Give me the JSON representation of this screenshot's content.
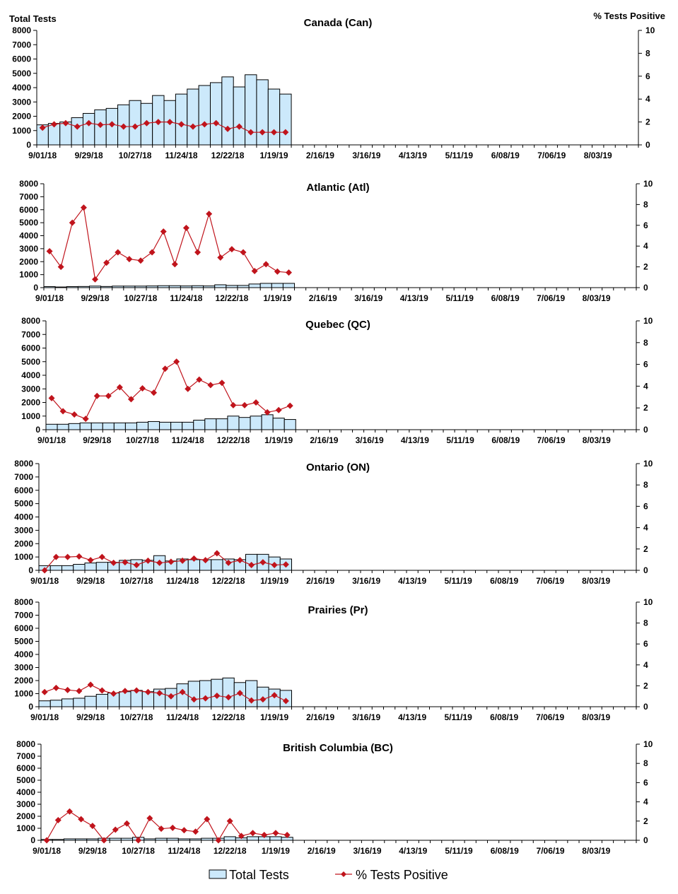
{
  "axis_labels": {
    "left": "Total Tests",
    "right": "% Tests Positive"
  },
  "legend": {
    "bars": "Total Tests",
    "line": "% Tests Positive"
  },
  "colors": {
    "bar_fill": "#cce9fb",
    "bar_stroke": "#000000",
    "line": "#c0141c"
  },
  "x_tick_labels": [
    "9/01/18",
    "9/29/18",
    "10/27/18",
    "11/24/18",
    "12/22/18",
    "1/19/19",
    "2/16/19",
    "3/16/19",
    "4/13/19",
    "5/11/19",
    "6/08/19",
    "7/06/19",
    "8/03/19"
  ],
  "chart_data": [
    {
      "type": "bar+line",
      "title": "Canada (Can)",
      "x_weeks_start": "9/01/18",
      "ylim_left": [
        0,
        8000
      ],
      "ylim_right": [
        0,
        10
      ],
      "left_ticks": [
        0,
        1000,
        2000,
        3000,
        4000,
        5000,
        6000,
        7000,
        8000
      ],
      "right_ticks": [
        0,
        2,
        4,
        6,
        8,
        10
      ],
      "series": [
        {
          "name": "Total Tests",
          "axis": "left",
          "values": [
            1400,
            1500,
            1600,
            1900,
            2200,
            2450,
            2550,
            2800,
            3100,
            2900,
            3450,
            3100,
            3550,
            3900,
            4150,
            4350,
            4750,
            4050,
            4900,
            4550,
            3900,
            3550
          ]
        },
        {
          "name": "% Tests Positive",
          "axis": "right",
          "values": [
            1.5,
            1.8,
            1.9,
            1.6,
            1.9,
            1.75,
            1.8,
            1.6,
            1.6,
            1.9,
            2.0,
            2.0,
            1.8,
            1.6,
            1.8,
            1.9,
            1.4,
            1.6,
            1.1,
            1.1,
            1.1,
            1.1
          ]
        }
      ]
    },
    {
      "type": "bar+line",
      "title": "Atlantic (Atl)",
      "ylim_left": [
        0,
        8000
      ],
      "ylim_right": [
        0,
        10
      ],
      "left_ticks": [
        0,
        1000,
        2000,
        3000,
        4000,
        5000,
        6000,
        7000,
        8000
      ],
      "right_ticks": [
        0,
        2,
        4,
        6,
        8,
        10
      ],
      "series": [
        {
          "name": "Total Tests",
          "axis": "left",
          "values": [
            80,
            50,
            80,
            90,
            120,
            90,
            120,
            120,
            120,
            130,
            150,
            150,
            130,
            150,
            130,
            220,
            170,
            170,
            280,
            330,
            330,
            330
          ]
        },
        {
          "name": "% Tests Positive",
          "axis": "right",
          "values": [
            3.5,
            2.0,
            6.25,
            7.7,
            0.8,
            2.4,
            3.4,
            2.75,
            2.6,
            3.4,
            5.4,
            2.25,
            5.75,
            3.4,
            7.1,
            2.9,
            3.7,
            3.4,
            1.6,
            2.25,
            1.55,
            1.45
          ]
        }
      ]
    },
    {
      "type": "bar+line",
      "title": "Quebec (QC)",
      "ylim_left": [
        0,
        8000
      ],
      "ylim_right": [
        0,
        10
      ],
      "left_ticks": [
        0,
        1000,
        2000,
        3000,
        4000,
        5000,
        6000,
        7000,
        8000
      ],
      "right_ticks": [
        0,
        2,
        4,
        6,
        8,
        10
      ],
      "series": [
        {
          "name": "Total Tests",
          "axis": "left",
          "values": [
            400,
            400,
            450,
            500,
            500,
            500,
            500,
            500,
            550,
            600,
            550,
            550,
            550,
            700,
            800,
            800,
            1000,
            900,
            1000,
            1100,
            850,
            750
          ]
        },
        {
          "name": "% Tests Positive",
          "axis": "right",
          "values": [
            2.9,
            1.7,
            1.4,
            1.0,
            3.1,
            3.1,
            3.9,
            2.8,
            3.8,
            3.4,
            5.6,
            6.25,
            3.75,
            4.6,
            4.1,
            4.3,
            2.25,
            2.25,
            2.5,
            1.6,
            1.8,
            2.2
          ]
        }
      ]
    },
    {
      "type": "bar+line",
      "title": "Ontario (ON)",
      "ylim_left": [
        0,
        8000
      ],
      "ylim_right": [
        0,
        10
      ],
      "left_ticks": [
        0,
        1000,
        2000,
        3000,
        4000,
        5000,
        6000,
        7000,
        8000
      ],
      "right_ticks": [
        0,
        2,
        4,
        6,
        8,
        10
      ],
      "series": [
        {
          "name": "Total Tests",
          "axis": "left",
          "values": [
            350,
            350,
            350,
            450,
            550,
            600,
            600,
            750,
            800,
            750,
            1100,
            700,
            850,
            800,
            800,
            800,
            850,
            800,
            1200,
            1200,
            1000,
            850
          ]
        },
        {
          "name": "% Tests Positive",
          "axis": "right",
          "values": [
            0,
            1.25,
            1.25,
            1.3,
            0.95,
            1.25,
            0.7,
            0.75,
            0.5,
            0.9,
            0.7,
            0.8,
            0.9,
            1.1,
            0.95,
            1.6,
            0.7,
            0.95,
            0.5,
            0.75,
            0.5,
            0.55
          ]
        }
      ]
    },
    {
      "type": "bar+line",
      "title": "Prairies (Pr)",
      "ylim_left": [
        0,
        8000
      ],
      "ylim_right": [
        0,
        10
      ],
      "left_ticks": [
        0,
        1000,
        2000,
        3000,
        4000,
        5000,
        6000,
        7000,
        8000
      ],
      "right_ticks": [
        0,
        2,
        4,
        6,
        8,
        10
      ],
      "series": [
        {
          "name": "Total Tests",
          "axis": "left",
          "values": [
            450,
            500,
            600,
            650,
            800,
            950,
            1050,
            1150,
            1250,
            1150,
            1350,
            1400,
            1750,
            1950,
            2000,
            2100,
            2200,
            1850,
            2000,
            1500,
            1350,
            1250
          ]
        },
        {
          "name": "% Tests Positive",
          "axis": "right",
          "values": [
            1.4,
            1.8,
            1.6,
            1.5,
            2.1,
            1.55,
            1.25,
            1.5,
            1.55,
            1.4,
            1.3,
            1.0,
            1.4,
            0.7,
            0.8,
            1.05,
            0.9,
            1.3,
            0.6,
            0.7,
            1.1,
            0.55
          ]
        }
      ]
    },
    {
      "type": "bar+line",
      "title": "British Columbia (BC)",
      "ylim_left": [
        0,
        8000
      ],
      "ylim_right": [
        0,
        10
      ],
      "left_ticks": [
        0,
        1000,
        2000,
        3000,
        4000,
        5000,
        6000,
        7000,
        8000
      ],
      "right_ticks": [
        0,
        2,
        4,
        6,
        8,
        10
      ],
      "series": [
        {
          "name": "Total Tests",
          "axis": "left",
          "values": [
            70,
            70,
            120,
            120,
            120,
            170,
            170,
            170,
            250,
            120,
            170,
            170,
            120,
            120,
            170,
            170,
            300,
            200,
            300,
            300,
            300,
            250
          ]
        },
        {
          "name": "% Tests Positive",
          "axis": "right",
          "values": [
            0,
            2.1,
            3.0,
            2.2,
            1.5,
            0,
            1.1,
            1.75,
            0,
            2.3,
            1.2,
            1.3,
            1.05,
            0.9,
            2.2,
            0,
            2.0,
            0.45,
            0.75,
            0.55,
            0.75,
            0.55
          ]
        }
      ]
    }
  ]
}
